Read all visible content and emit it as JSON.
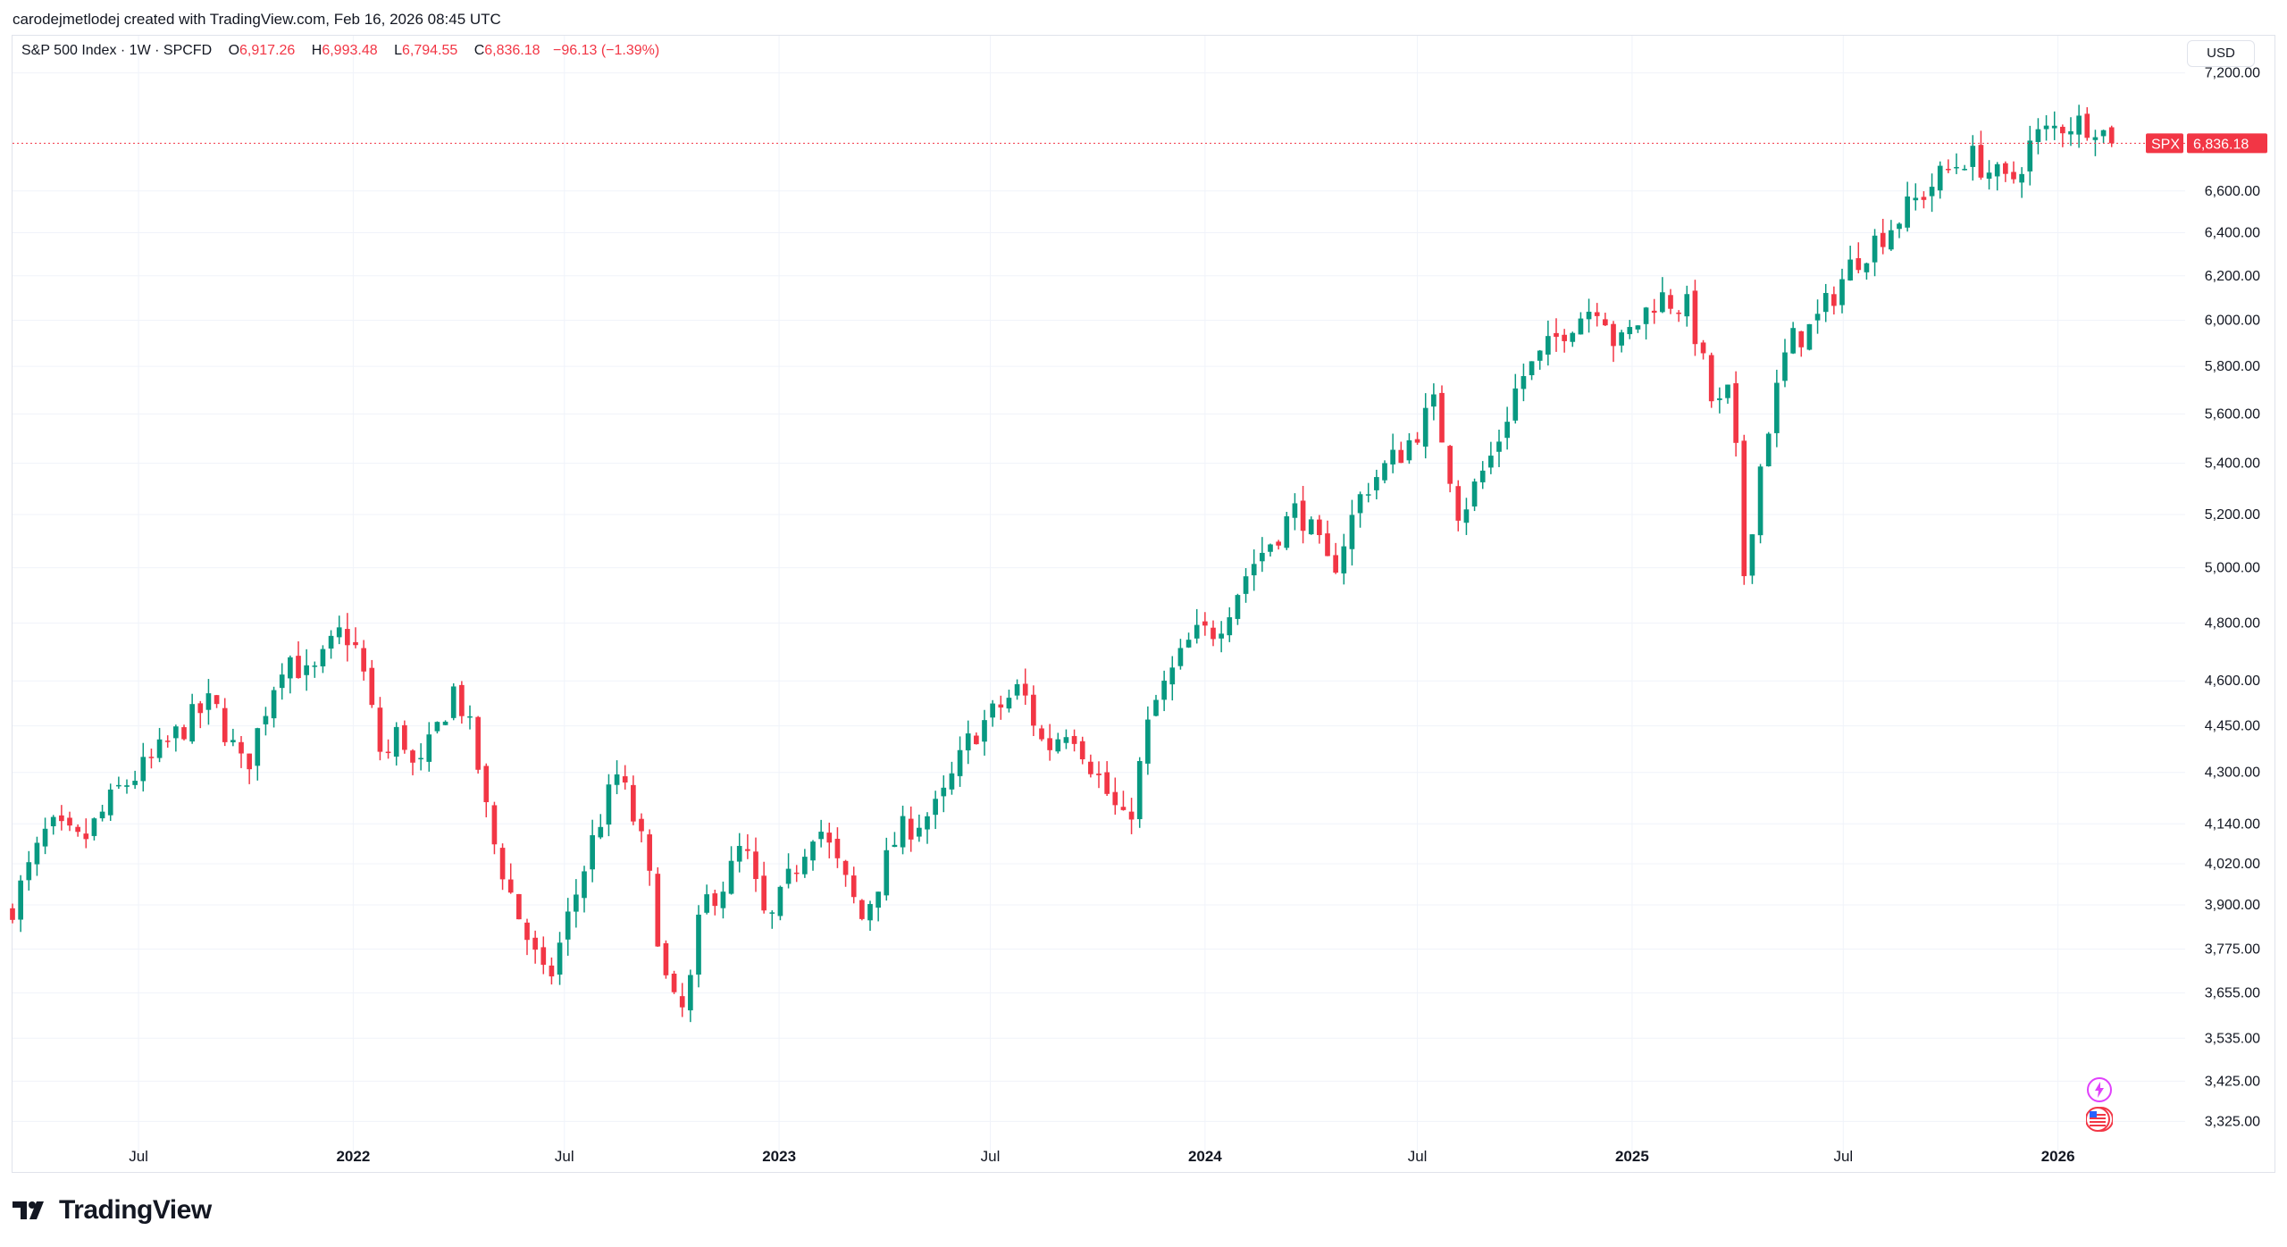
{
  "header": {
    "attribution": "carodejmetlodej created with TradingView.com, Feb 16, 2026 08:45 UTC"
  },
  "legend": {
    "symbol_line": "S&P 500 Index · 1W · SPCFD",
    "open_label": "O",
    "open": "6,917.26",
    "high_label": "H",
    "high": "6,993.48",
    "low_label": "L",
    "low": "6,794.55",
    "close_label": "C",
    "close": "6,836.18",
    "change": "−96.13 (−1.39%)"
  },
  "currency": "USD",
  "price_tag": {
    "ticker": "SPX",
    "price": "6,836.18",
    "value": 6836.18
  },
  "brand": "TradingView",
  "icons": [
    "tradingview-logo-icon",
    "lightning-event-icon",
    "us-flag-event-icon"
  ],
  "colors": {
    "up": "#089981",
    "down": "#f23645",
    "grid": "#f0f3fa",
    "text": "#131722"
  },
  "chart_data": {
    "type": "candlestick",
    "scale": "log",
    "interval": "1W",
    "ylim": [
      3250,
      7400
    ],
    "xlim": [
      "2021-03-15",
      "2026-04-20"
    ],
    "y_ticks": [
      {
        "v": 3325,
        "label": "3,325.00"
      },
      {
        "v": 3425,
        "label": "3,425.00"
      },
      {
        "v": 3535,
        "label": "3,535.00"
      },
      {
        "v": 3655,
        "label": "3,655.00"
      },
      {
        "v": 3775,
        "label": "3,775.00"
      },
      {
        "v": 3900,
        "label": "3,900.00"
      },
      {
        "v": 4020,
        "label": "4,020.00"
      },
      {
        "v": 4140,
        "label": "4,140.00"
      },
      {
        "v": 4300,
        "label": "4,300.00"
      },
      {
        "v": 4450,
        "label": "4,450.00"
      },
      {
        "v": 4600,
        "label": "4,600.00"
      },
      {
        "v": 4800,
        "label": "4,800.00"
      },
      {
        "v": 5000,
        "label": "5,000.00"
      },
      {
        "v": 5200,
        "label": "5,200.00"
      },
      {
        "v": 5400,
        "label": "5,400.00"
      },
      {
        "v": 5600,
        "label": "5,600.00"
      },
      {
        "v": 5800,
        "label": "5,800.00"
      },
      {
        "v": 6000,
        "label": "6,000.00"
      },
      {
        "v": 6200,
        "label": "6,200.00"
      },
      {
        "v": 6400,
        "label": "6,400.00"
      },
      {
        "v": 6600,
        "label": "6,600.00"
      },
      {
        "v": 7200,
        "label": "7,200.00"
      }
    ],
    "x_ticks": [
      {
        "date": "2021-07-01",
        "label": "Jul",
        "bold": false
      },
      {
        "date": "2022-01-01",
        "label": "2022",
        "bold": true
      },
      {
        "date": "2022-07-01",
        "label": "Jul",
        "bold": false
      },
      {
        "date": "2023-01-01",
        "label": "2023",
        "bold": true
      },
      {
        "date": "2023-07-01",
        "label": "Jul",
        "bold": false
      },
      {
        "date": "2024-01-01",
        "label": "2024",
        "bold": true
      },
      {
        "date": "2024-07-01",
        "label": "Jul",
        "bold": false
      },
      {
        "date": "2025-01-01",
        "label": "2025",
        "bold": true
      },
      {
        "date": "2025-07-01",
        "label": "Jul",
        "bold": false
      },
      {
        "date": "2026-01-01",
        "label": "2026",
        "bold": true
      }
    ],
    "anchors": [
      [
        "2021-03-15",
        3900
      ],
      [
        "2021-04-15",
        4130
      ],
      [
        "2021-05-13",
        4080
      ],
      [
        "2021-06-15",
        4250
      ],
      [
        "2021-07-08",
        4320
      ],
      [
        "2021-08-12",
        4460
      ],
      [
        "2021-09-02",
        4530
      ],
      [
        "2021-09-30",
        4300
      ],
      [
        "2021-10-21",
        4550
      ],
      [
        "2021-11-04",
        4700
      ],
      [
        "2021-11-25",
        4600
      ],
      [
        "2021-12-23",
        4780
      ],
      [
        "2022-01-06",
        4690
      ],
      [
        "2022-01-27",
        4320
      ],
      [
        "2022-02-10",
        4450
      ],
      [
        "2022-02-24",
        4280
      ],
      [
        "2022-03-29",
        4580
      ],
      [
        "2022-04-14",
        4400
      ],
      [
        "2022-04-28",
        4120
      ],
      [
        "2022-05-19",
        3900
      ],
      [
        "2022-06-16",
        3670
      ],
      [
        "2022-06-30",
        3820
      ],
      [
        "2022-07-28",
        4120
      ],
      [
        "2022-08-16",
        4300
      ],
      [
        "2022-09-08",
        4050
      ],
      [
        "2022-09-29",
        3630
      ],
      [
        "2022-10-13",
        3600
      ],
      [
        "2022-10-27",
        3900
      ],
      [
        "2022-11-17",
        3970
      ],
      [
        "2022-12-01",
        4080
      ],
      [
        "2022-12-22",
        3830
      ],
      [
        "2023-01-12",
        3990
      ],
      [
        "2023-02-02",
        4150
      ],
      [
        "2023-02-23",
        3990
      ],
      [
        "2023-03-13",
        3860
      ],
      [
        "2023-04-13",
        4110
      ],
      [
        "2023-05-18",
        4190
      ],
      [
        "2023-06-15",
        4420
      ],
      [
        "2023-07-27",
        4580
      ],
      [
        "2023-08-17",
        4370
      ],
      [
        "2023-09-07",
        4460
      ],
      [
        "2023-10-05",
        4260
      ],
      [
        "2023-10-26",
        4120
      ],
      [
        "2023-11-16",
        4500
      ],
      [
        "2023-12-21",
        4750
      ],
      [
        "2024-01-11",
        4780
      ],
      [
        "2024-02-08",
        5000
      ],
      [
        "2024-03-21",
        5230
      ],
      [
        "2024-04-18",
        4980
      ],
      [
        "2024-05-16",
        5300
      ],
      [
        "2024-06-20",
        5460
      ],
      [
        "2024-07-16",
        5640
      ],
      [
        "2024-08-06",
        5200
      ],
      [
        "2024-09-05",
        5450
      ],
      [
        "2024-09-26",
        5740
      ],
      [
        "2024-10-17",
        5850
      ],
      [
        "2024-11-06",
        5980
      ],
      [
        "2024-12-05",
        6090
      ],
      [
        "2024-12-19",
        5870
      ],
      [
        "2025-01-23",
        6110
      ],
      [
        "2025-02-19",
        6050
      ],
      [
        "2025-03-13",
        5600
      ],
      [
        "2025-03-27",
        5700
      ],
      [
        "2025-04-07",
        4980
      ],
      [
        "2025-04-24",
        5480
      ],
      [
        "2025-05-15",
        5900
      ],
      [
        "2025-06-05",
        5970
      ],
      [
        "2025-07-10",
        6270
      ],
      [
        "2025-08-14",
        6450
      ],
      [
        "2025-09-18",
        6650
      ],
      [
        "2025-10-16",
        6780
      ],
      [
        "2025-11-20",
        6620
      ],
      [
        "2025-12-11",
        6860
      ],
      [
        "2026-01-08",
        6940
      ],
      [
        "2026-02-02",
        6940
      ],
      [
        "2026-02-16",
        6836.18
      ]
    ]
  }
}
